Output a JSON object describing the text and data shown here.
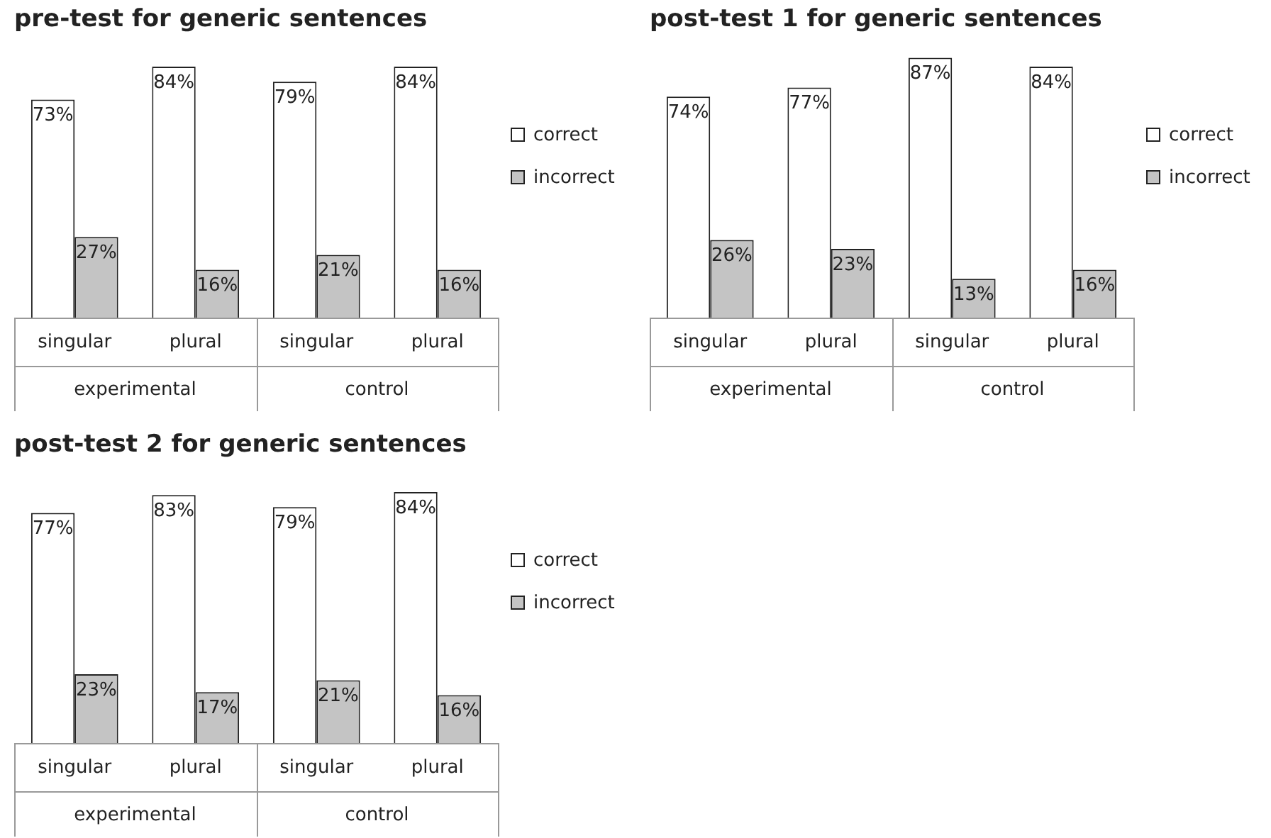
{
  "chart_data": [
    {
      "type": "bar",
      "title": "pre-test for generic sentences",
      "categories": [
        "singular",
        "plural",
        "singular",
        "plural"
      ],
      "annotations": [
        "experimental",
        "control"
      ],
      "legend": "right",
      "series": [
        {
          "name": "correct",
          "color": "#ffffff",
          "values": [
            73,
            84,
            79,
            84
          ],
          "value_labels": [
            "73%",
            "84%",
            "79%",
            "84%"
          ]
        },
        {
          "name": "incorrect",
          "color": "#c4c4c4",
          "values": [
            27,
            16,
            21,
            16
          ],
          "value_labels": [
            "27%",
            "16%",
            "21%",
            "16%"
          ]
        }
      ]
    },
    {
      "type": "bar",
      "title": "post-test 1 for generic sentences",
      "categories": [
        "singular",
        "plural",
        "singular",
        "plural"
      ],
      "annotations": [
        "experimental",
        "control"
      ],
      "legend": "right",
      "series": [
        {
          "name": "correct",
          "color": "#ffffff",
          "values": [
            74,
            77,
            87,
            84
          ],
          "value_labels": [
            "74%",
            "77%",
            "87%",
            "84%"
          ]
        },
        {
          "name": "incorrect",
          "color": "#c4c4c4",
          "values": [
            26,
            23,
            13,
            16
          ],
          "value_labels": [
            "26%",
            "23%",
            "13%",
            "16%"
          ]
        }
      ]
    },
    {
      "type": "bar",
      "title": "post-test 2 for generic sentences",
      "categories": [
        "singular",
        "plural",
        "singular",
        "plural"
      ],
      "annotations": [
        "experimental",
        "control"
      ],
      "legend": "right",
      "series": [
        {
          "name": "correct",
          "color": "#ffffff",
          "values": [
            77,
            83,
            79,
            84
          ],
          "value_labels": [
            "77%",
            "83%",
            "79%",
            "84%"
          ]
        },
        {
          "name": "incorrect",
          "color": "#c4c4c4",
          "values": [
            23,
            17,
            21,
            16
          ],
          "value_labels": [
            "23%",
            "17%",
            "21%",
            "16%"
          ]
        }
      ]
    }
  ]
}
